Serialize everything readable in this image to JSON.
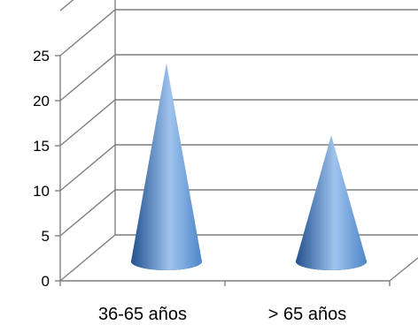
{
  "chart_data": {
    "type": "bar",
    "style": "3d-cone",
    "categories": [
      "36-65 años",
      "> 65 años"
    ],
    "values": [
      22,
      14
    ],
    "ylim": [
      0,
      25
    ],
    "yticks": [
      0,
      5,
      10,
      15,
      20,
      25
    ],
    "grid": true,
    "legend": "none",
    "colors": {
      "cone_light": "#9ec3ee",
      "cone_mid": "#4f86c8",
      "cone_dark": "#23528f",
      "gridline": "#7f7f7f",
      "axis": "#7f7f7f"
    }
  }
}
